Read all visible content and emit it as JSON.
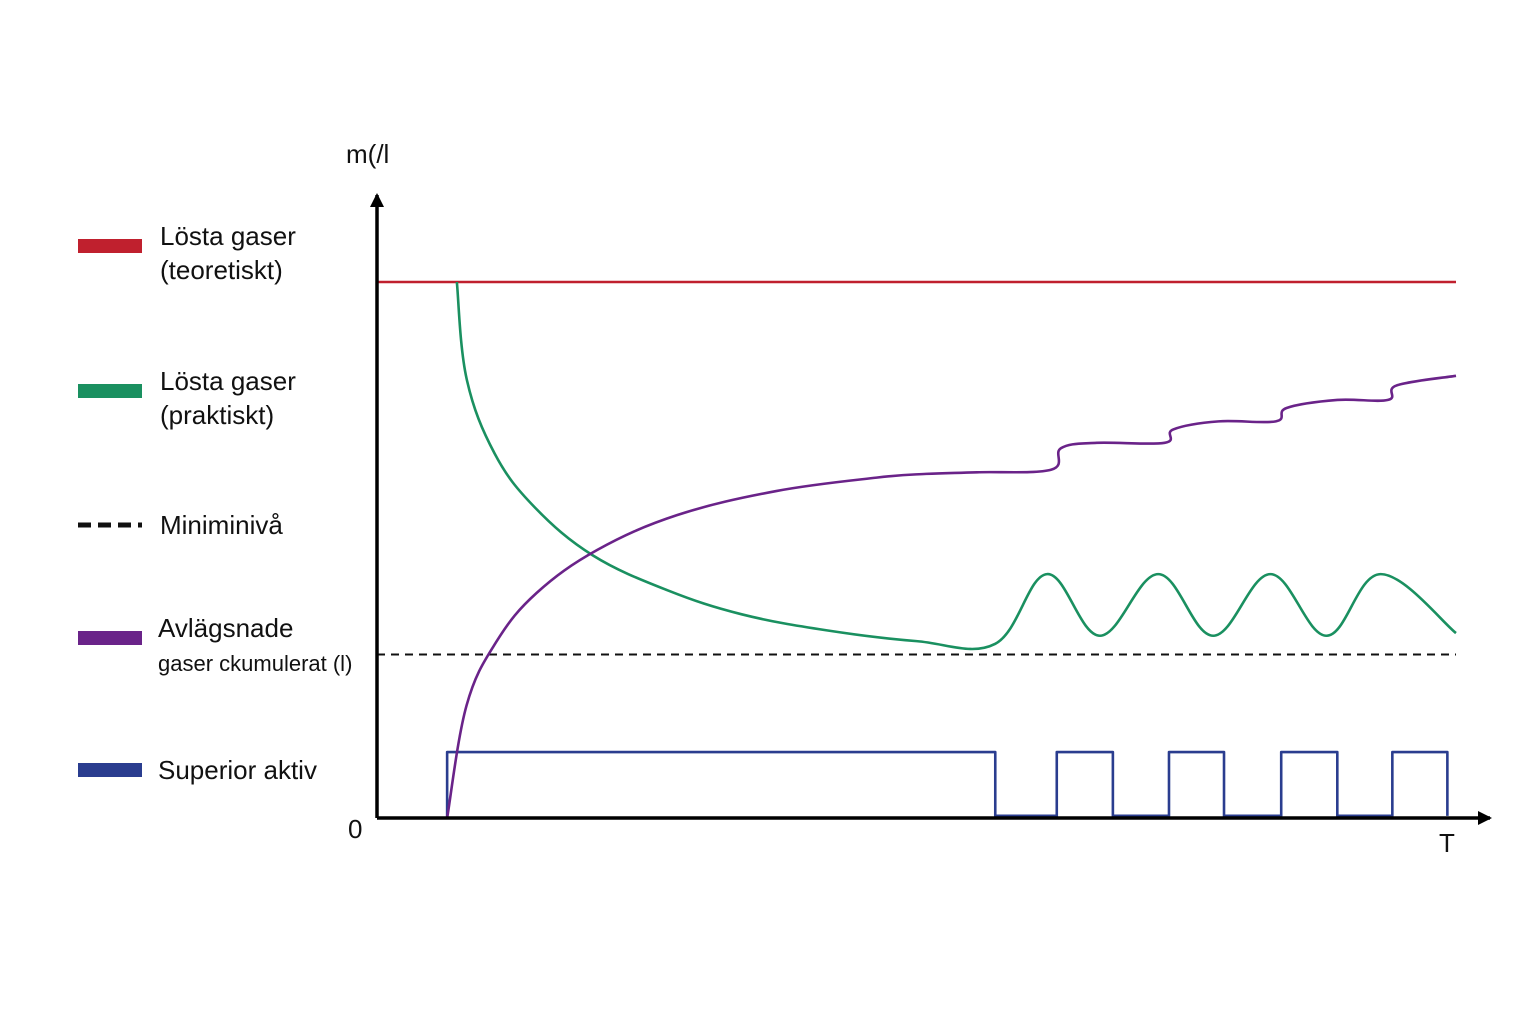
{
  "chart_data": {
    "type": "line",
    "ylabel": "m(/l",
    "xlabel": "T",
    "origin_label": "0",
    "xlim": [
      0,
      100
    ],
    "ylim": [
      0,
      100
    ],
    "grid": false,
    "legend_placement": "left",
    "colors": {
      "red": "#c0202e",
      "green": "#1a9060",
      "black": "#111111",
      "purple": "#6a2389",
      "blue": "#2a3d8f",
      "axis": "#000000"
    },
    "legend": [
      {
        "key": "red",
        "lines": [
          "Lösta gaser",
          "(teoretiskt)"
        ],
        "style": "solid"
      },
      {
        "key": "green",
        "lines": [
          "Lösta gaser",
          "(praktiskt)"
        ],
        "style": "solid"
      },
      {
        "key": "black",
        "lines": [
          "Miniminivå"
        ],
        "style": "dashed"
      },
      {
        "key": "purple",
        "lines": [
          "Avlägsnade",
          "gaser ckumulerat (l)"
        ],
        "style": "solid"
      },
      {
        "key": "blue",
        "lines": [
          "Superior aktiv"
        ],
        "style": "solid"
      }
    ],
    "series": [
      {
        "key": "red",
        "style": "solid",
        "points": [
          [
            0,
            100
          ],
          [
            100,
            100
          ]
        ]
      },
      {
        "key": "green",
        "style": "solid",
        "points": [
          [
            7.4,
            100
          ],
          [
            8.3,
            82
          ],
          [
            10.9,
            68
          ],
          [
            14.6,
            58
          ],
          [
            20.0,
            49
          ],
          [
            26.9,
            42.5
          ],
          [
            33.8,
            38
          ],
          [
            41.7,
            35
          ],
          [
            50.0,
            33
          ],
          [
            57.3,
            32.5
          ],
          [
            62.1,
            45.5
          ],
          [
            67.0,
            34
          ],
          [
            72.4,
            45.5
          ],
          [
            77.5,
            34
          ],
          [
            82.8,
            45.5
          ],
          [
            88.0,
            34
          ],
          [
            93.0,
            45.5
          ],
          [
            100,
            34.5
          ]
        ]
      },
      {
        "key": "black",
        "style": "dashed",
        "points": [
          [
            0,
            30.5
          ],
          [
            100,
            30.5
          ]
        ]
      },
      {
        "key": "purple",
        "style": "solid",
        "points": [
          [
            6.5,
            0
          ],
          [
            8.3,
            21
          ],
          [
            11.1,
            33
          ],
          [
            14.8,
            42
          ],
          [
            20.4,
            50
          ],
          [
            27.8,
            56.5
          ],
          [
            37.0,
            61
          ],
          [
            46.3,
            63.5
          ],
          [
            50.9,
            64.2
          ],
          [
            55.6,
            64.5
          ],
          [
            62.5,
            65
          ],
          [
            63.4,
            69
          ],
          [
            66.7,
            70
          ],
          [
            73.0,
            70
          ],
          [
            73.8,
            72.5
          ],
          [
            78.0,
            74
          ],
          [
            83.3,
            74
          ],
          [
            84.3,
            76.5
          ],
          [
            89.0,
            78
          ],
          [
            93.7,
            78
          ],
          [
            94.5,
            80.7
          ],
          [
            100,
            82.5
          ]
        ]
      },
      {
        "key": "blue",
        "style": "solid",
        "points": [
          [
            6.5,
            0
          ],
          [
            6.5,
            12.3
          ],
          [
            57.3,
            12.3
          ],
          [
            57.3,
            0.4
          ],
          [
            63.0,
            0.4
          ],
          [
            63.0,
            12.3
          ],
          [
            68.2,
            12.3
          ],
          [
            68.2,
            0.4
          ],
          [
            73.4,
            0.4
          ],
          [
            73.4,
            12.3
          ],
          [
            78.5,
            12.3
          ],
          [
            78.5,
            0.4
          ],
          [
            83.8,
            0.4
          ],
          [
            83.8,
            12.3
          ],
          [
            89.0,
            12.3
          ],
          [
            89.0,
            0.4
          ],
          [
            94.1,
            0.4
          ],
          [
            94.1,
            12.3
          ],
          [
            99.2,
            12.3
          ],
          [
            99.2,
            0.4
          ]
        ]
      }
    ]
  }
}
